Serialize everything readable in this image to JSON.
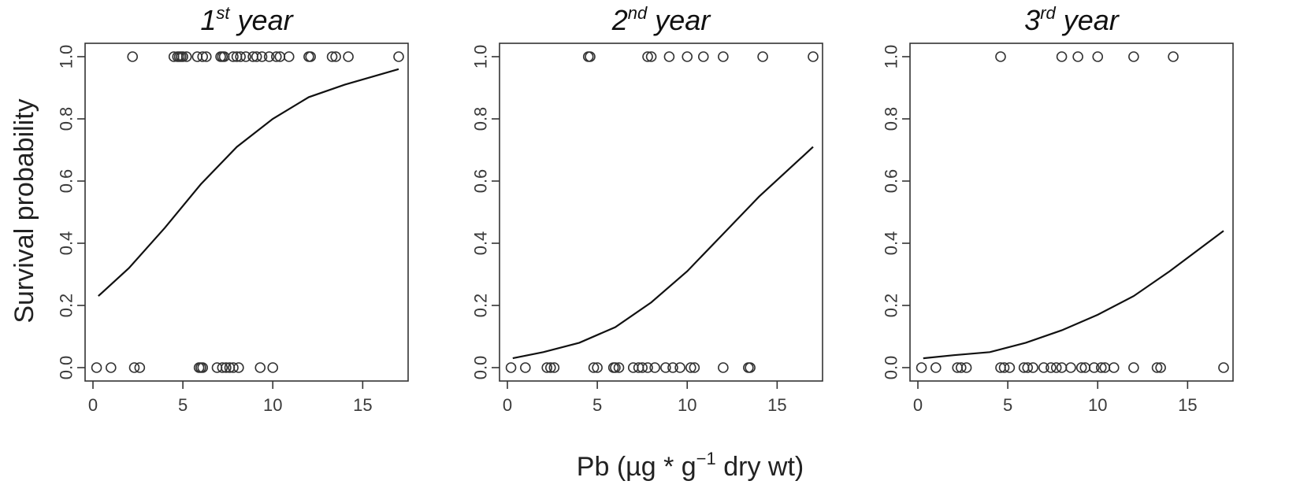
{
  "figure": {
    "ylabel": "Survival probability",
    "xlabel": {
      "prefix": "Pb (µg * g",
      "superscript": "−1",
      "suffix": " dry wt)"
    }
  },
  "chart_data": [
    {
      "type": "scatter",
      "title": {
        "base": "1",
        "sup": "st",
        "rest": " year"
      },
      "xlim": [
        0,
        17
      ],
      "ylim": [
        0,
        1
      ],
      "xticks": [
        "0",
        "5",
        "10",
        "15"
      ],
      "yticks": [
        "0.0",
        "0.2",
        "0.4",
        "0.6",
        "0.8",
        "1.0"
      ],
      "points_y1": [
        2.2,
        4.5,
        4.7,
        4.8,
        4.9,
        5.0,
        5.2,
        5.8,
        6.1,
        6.3,
        7.1,
        7.2,
        7.3,
        7.8,
        8.0,
        8.2,
        8.5,
        8.9,
        9.1,
        9.4,
        9.8,
        10.2,
        10.4,
        10.9,
        12.0,
        12.1,
        13.3,
        13.5,
        14.2,
        17.0
      ],
      "points_y0": [
        0.2,
        1.0,
        2.3,
        2.6,
        5.9,
        6.0,
        6.1,
        6.9,
        7.2,
        7.4,
        7.6,
        7.8,
        8.1,
        9.3,
        10.0
      ],
      "fit_curve": {
        "x": [
          0.3,
          2,
          4,
          6,
          8,
          10,
          12,
          14,
          17
        ],
        "y": [
          0.23,
          0.32,
          0.45,
          0.59,
          0.71,
          0.8,
          0.87,
          0.91,
          0.96
        ]
      }
    },
    {
      "type": "scatter",
      "title": {
        "base": "2",
        "sup": "nd",
        "rest": " year"
      },
      "xlim": [
        0,
        17
      ],
      "ylim": [
        0,
        1
      ],
      "xticks": [
        "0",
        "5",
        "10",
        "15"
      ],
      "yticks": [
        "0.0",
        "0.2",
        "0.4",
        "0.6",
        "0.8",
        "1.0"
      ],
      "points_y1": [
        4.5,
        4.6,
        7.8,
        8.0,
        9.0,
        10.0,
        10.9,
        12.0,
        14.2,
        17.0
      ],
      "points_y0": [
        0.2,
        1.0,
        2.2,
        2.4,
        2.6,
        4.8,
        5.0,
        5.9,
        6.0,
        6.2,
        7.0,
        7.3,
        7.5,
        7.8,
        8.2,
        8.8,
        9.2,
        9.6,
        10.2,
        10.4,
        12.0,
        13.4,
        13.5
      ],
      "fit_curve": {
        "x": [
          0.3,
          2,
          4,
          6,
          8,
          10,
          12,
          14,
          17
        ],
        "y": [
          0.03,
          0.05,
          0.08,
          0.13,
          0.21,
          0.31,
          0.43,
          0.55,
          0.71
        ]
      }
    },
    {
      "type": "scatter",
      "title": {
        "base": "3",
        "sup": "rd",
        "rest": " year"
      },
      "xlim": [
        0,
        17
      ],
      "ylim": [
        0,
        1
      ],
      "xticks": [
        "0",
        "5",
        "10",
        "15"
      ],
      "yticks": [
        "0.0",
        "0.2",
        "0.4",
        "0.6",
        "0.8",
        "1.0"
      ],
      "points_y1": [
        4.6,
        8.0,
        8.9,
        10.0,
        12.0,
        14.2
      ],
      "points_y0": [
        0.2,
        1.0,
        2.2,
        2.4,
        2.7,
        4.6,
        4.8,
        5.1,
        5.9,
        6.1,
        6.4,
        7.0,
        7.4,
        7.7,
        8.0,
        8.5,
        9.1,
        9.3,
        9.8,
        10.2,
        10.4,
        10.9,
        12.0,
        13.3,
        13.5,
        17.0
      ],
      "fit_curve": {
        "x": [
          0.3,
          2,
          4,
          6,
          8,
          10,
          12,
          14,
          17
        ],
        "y": [
          0.03,
          0.04,
          0.05,
          0.08,
          0.12,
          0.17,
          0.23,
          0.31,
          0.44
        ]
      }
    }
  ]
}
